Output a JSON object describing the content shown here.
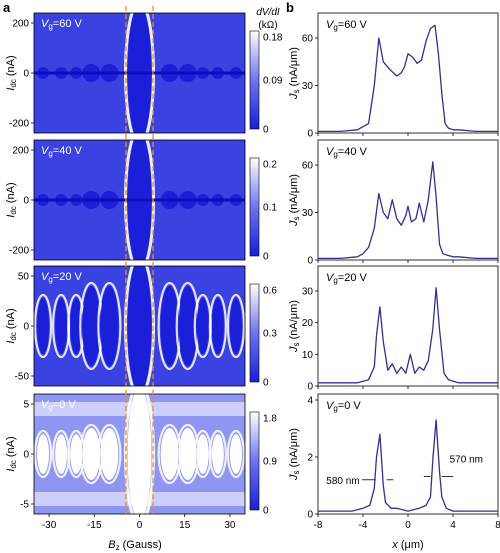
{
  "figure": {
    "panel_a_letter": "a",
    "panel_b_letter": "b",
    "colors": {
      "map_dark": "#1b1fd8",
      "map_mid": "#5a63ea",
      "map_light": "#ffffff",
      "line": "#2e3192",
      "dashed": "#f08a24"
    }
  },
  "panel_a": {
    "ylabel_main": "I",
    "ylabel_sub": "dc",
    "ylabel_unit": " (nA)",
    "xlabel_main": "B",
    "xlabel_sub": "z",
    "xlabel_unit": " (Gauss)",
    "x_ticks": [
      "-30",
      "-15",
      "0",
      "15",
      "30"
    ],
    "colorbar_title_line1": "dV/dI",
    "colorbar_title_line2": "(kΩ)",
    "dashed_lines_at_gauss": [
      -4.5,
      4.5
    ],
    "maps": [
      {
        "label_main": "V",
        "label_sub": "g",
        "label_rest": "=60 V",
        "y_ticks": [
          "200",
          "0",
          "-200"
        ],
        "cbar_ticks": [
          "0.18",
          "0.09",
          "0"
        ],
        "background": "mid"
      },
      {
        "label_main": "V",
        "label_sub": "g",
        "label_rest": "=40 V",
        "y_ticks": [
          "200",
          "0",
          "-200"
        ],
        "cbar_ticks": [
          "0.2",
          "0.1",
          "0"
        ],
        "background": "mid"
      },
      {
        "label_main": "V",
        "label_sub": "g",
        "label_rest": "=20 V",
        "y_ticks": [
          "50",
          "0",
          "-50"
        ],
        "cbar_ticks": [
          "0.6",
          "0.3",
          "0"
        ],
        "background": "mid"
      },
      {
        "label_main": "V",
        "label_sub": "g",
        "label_rest": "=0 V",
        "y_ticks": [
          "5",
          "0",
          "-5"
        ],
        "cbar_ticks": [
          "1.8",
          "0.9",
          "0"
        ],
        "background": "light"
      }
    ]
  },
  "panel_b": {
    "xlabel_main": "x",
    "xlabel_unit": " (μm)",
    "x_ticks": [
      "-8",
      "-4",
      "0",
      "4",
      "8"
    ],
    "ylabel_main": "J",
    "ylabel_sub": "s",
    "ylabel_unit": " (nA/μm)",
    "annotations": {
      "left_width": "580 nm",
      "right_width": "570 nm"
    }
  },
  "chart_data": [
    {
      "type": "line",
      "title": "Vg=60 V",
      "xlabel": "x (μm)",
      "ylabel": "Js (nA/μm)",
      "xlim": [
        -8,
        8
      ],
      "ylim": [
        0,
        72
      ],
      "y_ticks": [
        0,
        30,
        60
      ],
      "x": [
        -8,
        -6,
        -4.5,
        -4,
        -3.5,
        -3.0,
        -2.6,
        -2.2,
        -1.6,
        -1.0,
        -0.6,
        -0.3,
        0.0,
        0.4,
        0.8,
        1.2,
        1.6,
        2.0,
        2.4,
        2.7,
        3.0,
        3.3,
        3.6,
        4.0,
        4.5,
        6,
        8
      ],
      "values": [
        1,
        1,
        2,
        4,
        6,
        30,
        60,
        45,
        40,
        36,
        38,
        42,
        50,
        48,
        44,
        46,
        58,
        66,
        68,
        50,
        25,
        6,
        3,
        2,
        2,
        1,
        1
      ]
    },
    {
      "type": "line",
      "title": "Vg=40 V",
      "xlabel": "x (μm)",
      "ylabel": "Js (nA/μm)",
      "xlim": [
        -8,
        8
      ],
      "ylim": [
        0,
        72
      ],
      "y_ticks": [
        0,
        30,
        60
      ],
      "x": [
        -8,
        -6,
        -4.5,
        -4,
        -3.5,
        -3.0,
        -2.6,
        -2.2,
        -1.8,
        -1.4,
        -1.0,
        -0.6,
        -0.2,
        0.0,
        0.3,
        0.7,
        1.0,
        1.4,
        1.8,
        2.2,
        2.5,
        2.8,
        3.1,
        3.5,
        4.0,
        4.5,
        6,
        8
      ],
      "values": [
        1,
        1,
        2,
        4,
        8,
        20,
        42,
        30,
        26,
        38,
        26,
        22,
        28,
        34,
        24,
        26,
        36,
        24,
        38,
        62,
        40,
        10,
        4,
        3,
        2,
        2,
        1,
        1
      ]
    },
    {
      "type": "line",
      "title": "Vg=20 V",
      "xlabel": "x (μm)",
      "ylabel": "Js (nA/μm)",
      "xlim": [
        -8,
        8
      ],
      "ylim": [
        0,
        36
      ],
      "y_ticks": [
        0,
        10,
        20,
        30
      ],
      "x": [
        -8,
        -6,
        -4.5,
        -3.5,
        -3.0,
        -2.8,
        -2.5,
        -2.2,
        -1.8,
        -1.4,
        -1.0,
        -0.6,
        -0.2,
        0.2,
        0.6,
        1.0,
        1.4,
        1.8,
        2.2,
        2.5,
        2.8,
        3.2,
        3.6,
        4.5,
        6,
        8
      ],
      "values": [
        1,
        1,
        1,
        2,
        6,
        16,
        25,
        14,
        5,
        7,
        4,
        6,
        4,
        10,
        4,
        6,
        5,
        8,
        18,
        31,
        18,
        4,
        2,
        1,
        1,
        1
      ]
    },
    {
      "type": "line",
      "title": "Vg=0 V",
      "xlabel": "x (μm)",
      "ylabel": "Js (nA/μm)",
      "xlim": [
        -8,
        8
      ],
      "ylim": [
        0,
        4
      ],
      "y_ticks": [
        0,
        2,
        4
      ],
      "x": [
        -8,
        -6,
        -5,
        -4,
        -3.4,
        -3.0,
        -2.8,
        -2.5,
        -2.2,
        -2.0,
        -1.5,
        -1.0,
        0,
        1.0,
        1.6,
        2.0,
        2.2,
        2.5,
        2.8,
        3.0,
        3.4,
        4,
        5,
        6,
        8
      ],
      "values": [
        0.1,
        0.1,
        0.1,
        0.2,
        0.3,
        0.9,
        2.0,
        2.8,
        1.0,
        0.4,
        0.2,
        0.2,
        0.1,
        0.2,
        0.3,
        0.6,
        1.9,
        3.3,
        1.5,
        0.6,
        0.2,
        0.1,
        0.1,
        0.1,
        0.1
      ]
    }
  ]
}
